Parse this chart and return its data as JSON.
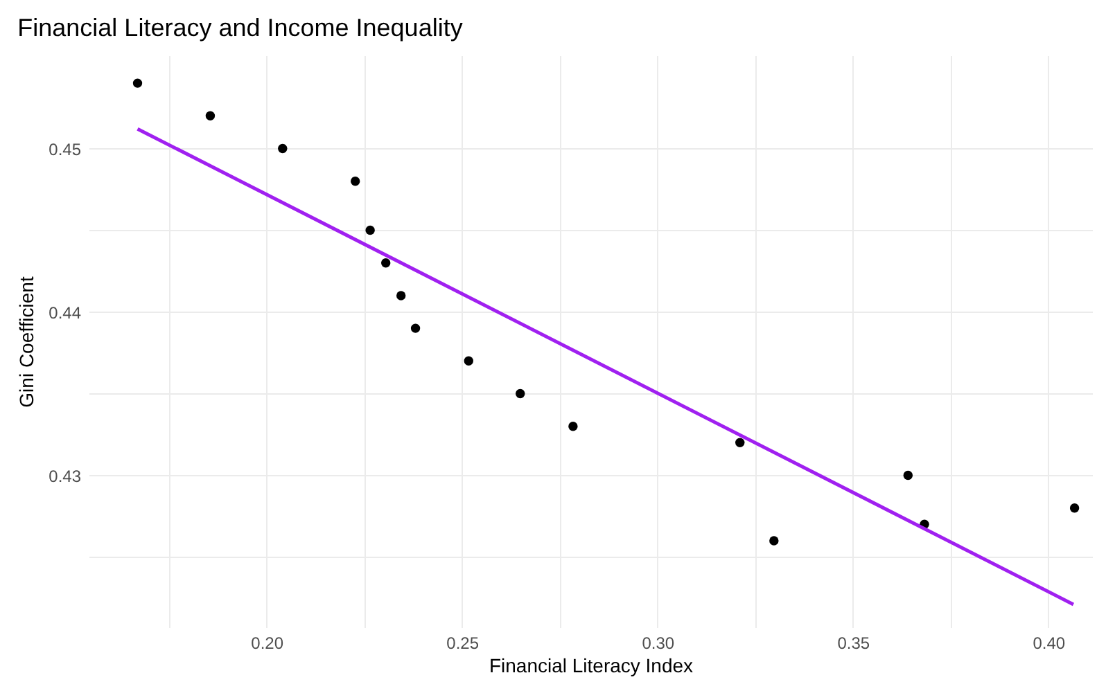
{
  "chart_data": {
    "type": "scatter",
    "title": "Financial Literacy and Income Inequality",
    "xlabel": "Financial Literacy Index",
    "ylabel": "Gini Coefficient",
    "x": [
      0.167,
      0.1856,
      0.2041,
      0.2227,
      0.2265,
      0.2305,
      0.2344,
      0.2381,
      0.2517,
      0.2649,
      0.2784,
      0.3211,
      0.3298,
      0.3641,
      0.3683,
      0.4067
    ],
    "series": [
      {
        "color": "#000000",
        "marker": "circle",
        "values": [
          0.454,
          0.452,
          0.45,
          0.448,
          0.445,
          0.443,
          0.441,
          0.439,
          0.437,
          0.435,
          0.433,
          0.432,
          0.426,
          0.43,
          0.427,
          0.428
        ]
      },
      {
        "type": "line",
        "color": "#a020f0",
        "x": [
          0.167,
          0.4064
        ],
        "values": [
          0.4512,
          0.4221
        ]
      }
    ],
    "xlim": [
      0.1545,
      0.4112
    ],
    "ylim": [
      0.4207,
      0.4557
    ],
    "xticks": [
      {
        "value": 0.175,
        "label": null
      },
      {
        "value": 0.2,
        "label": "0.20"
      },
      {
        "value": 0.225,
        "label": null
      },
      0.25,
      {
        "value": 0.275,
        "label": null
      },
      {
        "value": 0.3,
        "label": "0.30"
      },
      {
        "value": 0.325,
        "label": null
      },
      0.35,
      {
        "value": 0.375,
        "label": null
      },
      {
        "value": 0.4,
        "label": "0.40"
      }
    ],
    "yticks": [
      {
        "value": 0.425,
        "label": null
      },
      0.43,
      {
        "value": 0.435,
        "label": null
      },
      0.44,
      {
        "value": 0.445,
        "label": null
      },
      0.45
    ],
    "grid": true
  }
}
